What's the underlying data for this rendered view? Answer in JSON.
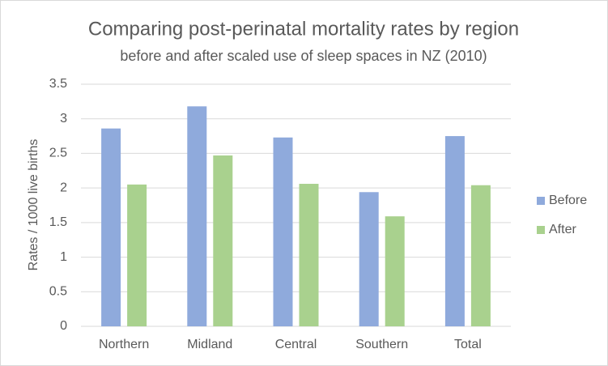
{
  "chart_data": {
    "type": "bar",
    "title": "Comparing post-perinatal mortality rates by region",
    "subtitle": "before and after scaled use of sleep spaces in NZ (2010)",
    "y_label": "Rates / 1000 live births",
    "categories": [
      "Northern",
      "Midland",
      "Central",
      "Southern",
      "Total"
    ],
    "series": [
      {
        "name": "Before",
        "color": "#8faadc",
        "values": [
          2.86,
          3.18,
          2.73,
          1.94,
          2.75
        ]
      },
      {
        "name": "After",
        "color": "#a9d18e",
        "values": [
          2.05,
          2.47,
          2.06,
          1.59,
          2.04
        ]
      }
    ],
    "ylim": [
      0,
      3.5
    ],
    "yticks": [
      0,
      0.5,
      1,
      1.5,
      2,
      2.5,
      3,
      3.5
    ],
    "grid": true,
    "legend": "right"
  }
}
